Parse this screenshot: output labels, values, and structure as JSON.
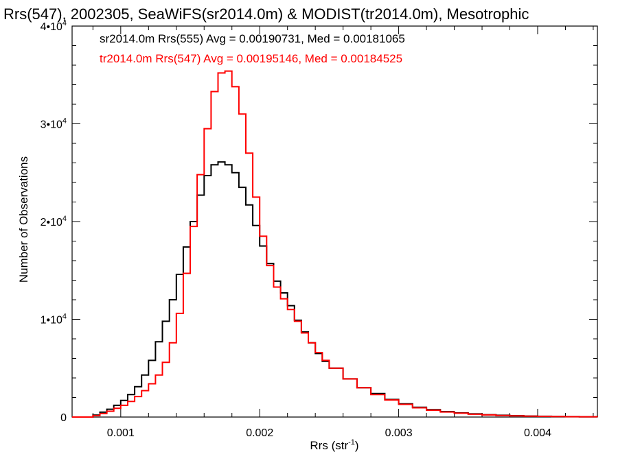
{
  "chart_data": {
    "type": "line",
    "title": "Rrs(547), 2002305, SeaWiFS(sr2014.0m) & MODIST(tr2014.0m), Mesotrophic",
    "xlabel": "Rrs (str",
    "xlabel_sup": "-1",
    "xlabel_suffix": ")",
    "ylabel": "Number of Observations",
    "xlim": [
      0.00065,
      0.00443
    ],
    "ylim": [
      0,
      40000
    ],
    "grid": false,
    "legend_position": "top-left",
    "x_ticks": [
      {
        "value": 0.001,
        "label": "0.001"
      },
      {
        "value": 0.002,
        "label": "0.002"
      },
      {
        "value": 0.003,
        "label": "0.003"
      },
      {
        "value": 0.004,
        "label": "0.004"
      }
    ],
    "y_ticks": [
      {
        "value": 0,
        "label": "0",
        "sup": ""
      },
      {
        "value": 10000,
        "label": "1•10",
        "sup": "4"
      },
      {
        "value": 20000,
        "label": "2•10",
        "sup": "4"
      },
      {
        "value": 30000,
        "label": "3•10",
        "sup": "4"
      },
      {
        "value": 40000,
        "label": "4•10",
        "sup": "4"
      }
    ],
    "series": [
      {
        "name": "sr2014.0m Rrs(555) Avg = 0.00190731, Med = 0.00181065",
        "color": "#000000",
        "x": [
          0.00065,
          0.0007,
          0.00075,
          0.0008,
          0.00085,
          0.0009,
          0.00095,
          0.001,
          0.00105,
          0.0011,
          0.00115,
          0.0012,
          0.00125,
          0.0013,
          0.00135,
          0.0014,
          0.00145,
          0.0015,
          0.00155,
          0.0016,
          0.00165,
          0.0017,
          0.00175,
          0.0018,
          0.00185,
          0.0019,
          0.00195,
          0.002,
          0.00205,
          0.0021,
          0.00215,
          0.0022,
          0.00225,
          0.0023,
          0.00235,
          0.0024,
          0.00245,
          0.0025,
          0.0026,
          0.0027,
          0.0028,
          0.0029,
          0.003,
          0.0031,
          0.0032,
          0.0033,
          0.0034,
          0.0035,
          0.0036,
          0.0037,
          0.0038,
          0.0039,
          0.004,
          0.0041,
          0.0042,
          0.0043,
          0.00443
        ],
        "y": [
          0,
          0,
          0,
          200,
          500,
          800,
          1200,
          1700,
          2300,
          3100,
          4300,
          5800,
          7700,
          9800,
          12000,
          14600,
          17400,
          20000,
          22700,
          24700,
          25800,
          26100,
          25800,
          25000,
          23500,
          21700,
          19600,
          17500,
          15700,
          13900,
          12700,
          11400,
          9900,
          8700,
          7600,
          6500,
          5700,
          5000,
          3900,
          3000,
          2400,
          1800,
          1350,
          1000,
          750,
          560,
          420,
          320,
          240,
          180,
          140,
          100,
          80,
          60,
          40,
          30,
          20
        ]
      },
      {
        "name": "tr2014.0m Rrs(547) Avg = 0.00195146, Med = 0.00184525",
        "color": "#ff0000",
        "x": [
          0.00065,
          0.0007,
          0.00075,
          0.0008,
          0.00085,
          0.0009,
          0.00095,
          0.001,
          0.00105,
          0.0011,
          0.00115,
          0.0012,
          0.00125,
          0.0013,
          0.00135,
          0.0014,
          0.00145,
          0.0015,
          0.00155,
          0.0016,
          0.00165,
          0.0017,
          0.00175,
          0.0018,
          0.00185,
          0.0019,
          0.00195,
          0.002,
          0.00205,
          0.0021,
          0.00215,
          0.0022,
          0.00225,
          0.0023,
          0.00235,
          0.0024,
          0.00245,
          0.0025,
          0.0026,
          0.0027,
          0.0028,
          0.0029,
          0.003,
          0.0031,
          0.0032,
          0.0033,
          0.0034,
          0.0035,
          0.0036,
          0.0037,
          0.0038,
          0.0039,
          0.004,
          0.0041,
          0.0042,
          0.0043,
          0.00443
        ],
        "y": [
          0,
          0,
          0,
          150,
          350,
          600,
          900,
          1200,
          1600,
          2100,
          2700,
          3400,
          4300,
          5600,
          7600,
          10600,
          14700,
          19500,
          24800,
          29500,
          33300,
          35200,
          35400,
          33800,
          31000,
          27000,
          22500,
          18500,
          15500,
          13300,
          12100,
          11000,
          9800,
          8600,
          7600,
          6600,
          5800,
          5000,
          3900,
          3000,
          2300,
          1750,
          1300,
          950,
          700,
          520,
          390,
          290,
          220,
          160,
          120,
          90,
          70,
          50,
          35,
          25,
          15
        ]
      }
    ]
  }
}
